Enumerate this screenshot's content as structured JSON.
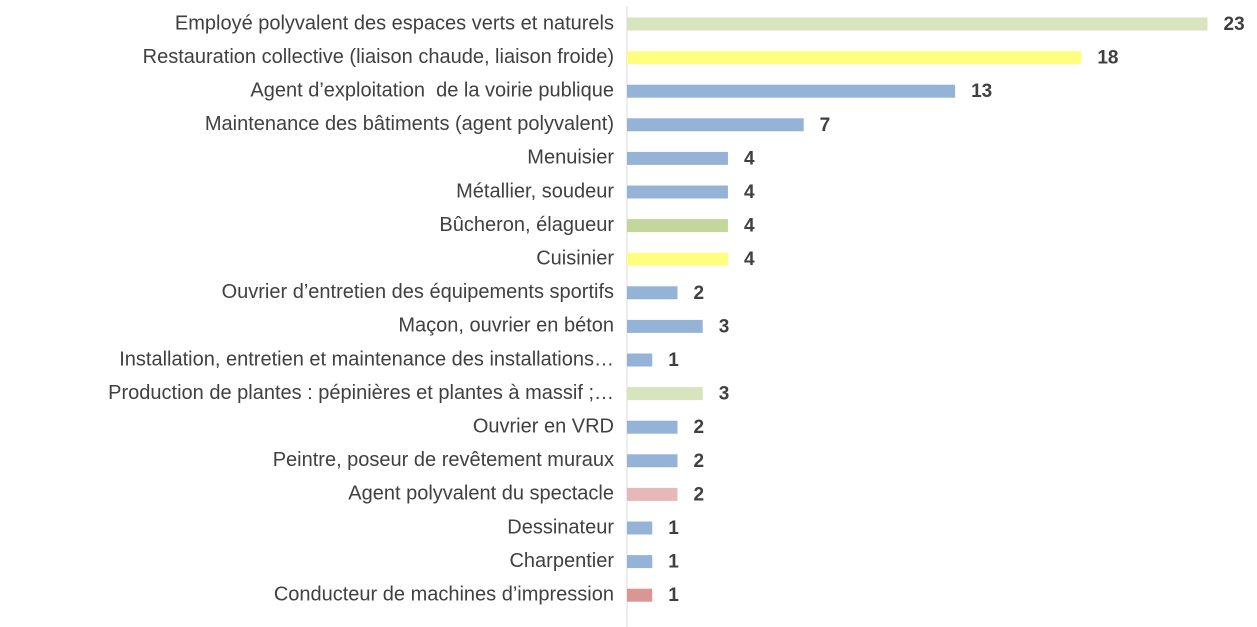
{
  "chart_data": {
    "type": "hbar",
    "categories": [
      "Employé polyvalent des espaces verts et naturels",
      "Restauration collective (liaison chaude, liaison froide)",
      "Agent d’exploitation  de la voirie publique",
      "Maintenance des bâtiments (agent polyvalent)",
      "Menuisier",
      "Métallier, soudeur",
      "Bûcheron, élagueur",
      "Cuisinier",
      "Ouvrier d’entretien des équipements sportifs",
      "Maçon, ouvrier en béton",
      "Installation, entretien et maintenance des installations…",
      "Production de plantes : pépinières et plantes à massif ;…",
      "Ouvrier en VRD",
      "Peintre, poseur de revêtement muraux",
      "Agent polyvalent du spectacle",
      "Dessinateur",
      "Charpentier",
      "Conducteur de machines d’impression"
    ],
    "values": [
      23,
      18,
      13,
      7,
      4,
      4,
      4,
      4,
      2,
      3,
      1,
      3,
      2,
      2,
      2,
      1,
      1,
      1
    ],
    "colors": [
      "#d7e4bd",
      "#ffff7f",
      "#95b3d7",
      "#95b3d7",
      "#95b3d7",
      "#95b3d7",
      "#c3d69b",
      "#ffff7f",
      "#95b3d7",
      "#95b3d7",
      "#95b3d7",
      "#d7e4bd",
      "#95b3d7",
      "#95b3d7",
      "#e6b9b8",
      "#95b3d7",
      "#95b3d7",
      "#d99694"
    ],
    "xlim": [
      0,
      25
    ]
  }
}
